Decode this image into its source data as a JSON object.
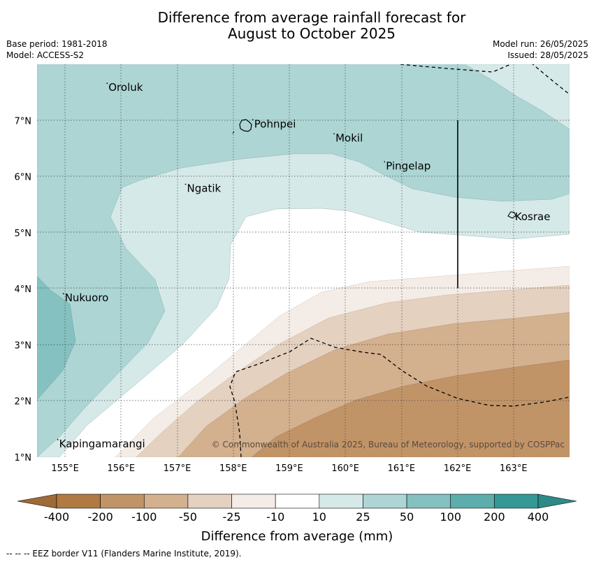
{
  "title_line1": "Difference from average rainfall forecast for",
  "title_line2": "August to October 2025",
  "base_period": "Base period: 1981-2018",
  "model": "Model: ACCESS-S2",
  "model_run": "Model run: 26/05/2025",
  "issued": "Issued: 28/05/2025",
  "copyright": "© Commonwealth of Australia 2025, Bureau of Meteorology, supported by COSPPac",
  "footnote": "--  --  -- EEZ border V11 (Flanders Marine Institute, 2019).",
  "map": {
    "lon_range": [
      154.5,
      164.0
    ],
    "lat_range": [
      1.0,
      8.0
    ],
    "lon_ticks": [
      "155°E",
      "156°E",
      "157°E",
      "158°E",
      "159°E",
      "160°E",
      "161°E",
      "162°E",
      "163°E"
    ],
    "lat_ticks": [
      "1°N",
      "2°N",
      "3°N",
      "4°N",
      "5°N",
      "6°N",
      "7°N"
    ],
    "places": [
      {
        "name": "Oroluk",
        "lon": 155.75,
        "lat": 7.6
      },
      {
        "name": "Pohnpei",
        "lon": 158.35,
        "lat": 6.95
      },
      {
        "name": "Mokil",
        "lon": 159.8,
        "lat": 6.7
      },
      {
        "name": "Pingelap",
        "lon": 160.7,
        "lat": 6.2
      },
      {
        "name": "Ngatik",
        "lon": 157.15,
        "lat": 5.8
      },
      {
        "name": "Kosrae",
        "lon": 163.0,
        "lat": 5.3
      },
      {
        "name": "Nukuoro",
        "lon": 154.97,
        "lat": 3.85
      },
      {
        "name": "Kapingamarangi",
        "lon": 154.87,
        "lat": 1.25
      }
    ]
  },
  "colorbar": {
    "title": "Difference from average (mm)",
    "tick_labels": [
      "-400",
      "-200",
      "-100",
      "-50",
      "-25",
      "-10",
      "10",
      "25",
      "50",
      "100",
      "200",
      "400"
    ],
    "colors": [
      "#b07a42",
      "#c19468",
      "#d3b08e",
      "#e4d1bf",
      "#f4ece6",
      "#ffffff",
      "#d5e9e8",
      "#acd5d4",
      "#84c1c0",
      "#5cadab",
      "#349996"
    ],
    "extend_min_color": "#9f6a36",
    "extend_max_color": "#2d8a87"
  }
}
